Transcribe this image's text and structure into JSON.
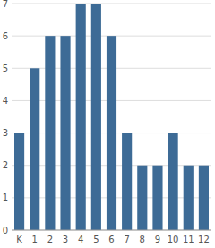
{
  "chart_data": {
    "type": "bar",
    "categories": [
      "K",
      "1",
      "2",
      "3",
      "4",
      "5",
      "6",
      "7",
      "8",
      "9",
      "10",
      "11",
      "12"
    ],
    "values": [
      3,
      5,
      6,
      6,
      7,
      7,
      6,
      3,
      2,
      2,
      3,
      2,
      2
    ],
    "color": "#3d6b96",
    "ylim": [
      0,
      7
    ],
    "yticks": [
      0,
      1,
      2,
      3,
      4,
      5,
      6,
      7
    ],
    "grid": true
  }
}
